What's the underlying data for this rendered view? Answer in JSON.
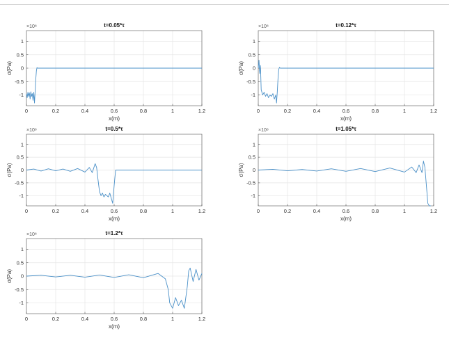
{
  "figure": {
    "window_rule": true
  },
  "colors": {
    "line": "#4a90c8",
    "grid": "#e6e6e6",
    "axis": "#555555"
  },
  "chart_data": [
    {
      "type": "line",
      "title": "t=0.05*τ",
      "xlabel": "x(m)",
      "ylabel": "σ(Pa)",
      "exponent_label": "×10⁸",
      "xlim": [
        0,
        1.2
      ],
      "ylim": [
        -1.4,
        1.4
      ],
      "x_ticks": [
        "0",
        "0.2",
        "0.4",
        "0.6",
        "0.8",
        "1",
        "1.2"
      ],
      "y_ticks": [
        "-1",
        "-0.5",
        "0",
        "0.5",
        "1"
      ],
      "grid": true,
      "series": [
        {
          "x": [
            0,
            0.005,
            0.01,
            0.015,
            0.02,
            0.025,
            0.03,
            0.035,
            0.04,
            0.045,
            0.05,
            0.055,
            0.06,
            0.064,
            0.068,
            0.072,
            0.076,
            0.08,
            0.1,
            0.4,
            0.8,
            1.2
          ],
          "y": [
            -0.95,
            -1.1,
            -0.9,
            -1.05,
            -0.92,
            -1.15,
            -0.88,
            -1.05,
            -0.95,
            -1.2,
            -0.9,
            -1.3,
            -0.8,
            -0.4,
            -0.1,
            0.02,
            0.0,
            0.0,
            0.0,
            0.0,
            0.0,
            0.0
          ]
        }
      ]
    },
    {
      "type": "line",
      "title": "t=0.12*τ",
      "xlabel": "x(m)",
      "ylabel": "σ(Pa)",
      "exponent_label": "×10⁸",
      "xlim": [
        0,
        1.2
      ],
      "ylim": [
        -1.4,
        1.4
      ],
      "x_ticks": [
        "0",
        "0.2",
        "0.4",
        "0.6",
        "0.8",
        "1",
        "1.2"
      ],
      "y_ticks": [
        "-1",
        "-0.5",
        "0",
        "0.5",
        "1"
      ],
      "grid": true,
      "series": [
        {
          "x": [
            0,
            0.005,
            0.01,
            0.015,
            0.02,
            0.03,
            0.04,
            0.05,
            0.06,
            0.07,
            0.08,
            0.09,
            0.1,
            0.11,
            0.12,
            0.125,
            0.13,
            0.135,
            0.14,
            0.145,
            0.15,
            0.16,
            0.2,
            0.6,
            1.0,
            1.2
          ],
          "y": [
            0.0,
            0.3,
            -0.2,
            0.1,
            -0.8,
            -1.0,
            -0.9,
            -1.05,
            -0.95,
            -1.1,
            -1.0,
            -1.05,
            -0.95,
            -1.15,
            -1.0,
            -1.3,
            -0.9,
            -0.4,
            -0.05,
            0.03,
            0.0,
            0.0,
            0.0,
            0.0,
            0.0,
            0.0
          ]
        }
      ]
    },
    {
      "type": "line",
      "title": "t=0.5*τ",
      "xlabel": "x(m)",
      "ylabel": "σ(Pa)",
      "exponent_label": "×10⁸",
      "xlim": [
        0,
        1.2
      ],
      "ylim": [
        -1.4,
        1.4
      ],
      "x_ticks": [
        "0",
        "0.2",
        "0.4",
        "0.6",
        "0.8",
        "1",
        "1.2"
      ],
      "y_ticks": [
        "-1",
        "-0.5",
        "0",
        "0.5",
        "1"
      ],
      "grid": true,
      "series": [
        {
          "x": [
            0,
            0.05,
            0.1,
            0.15,
            0.2,
            0.25,
            0.3,
            0.35,
            0.4,
            0.43,
            0.45,
            0.47,
            0.48,
            0.49,
            0.5,
            0.51,
            0.52,
            0.53,
            0.54,
            0.55,
            0.56,
            0.57,
            0.58,
            0.59,
            0.6,
            0.61,
            0.62,
            0.7,
            0.9,
            1.2
          ],
          "y": [
            0.0,
            0.04,
            -0.04,
            0.05,
            -0.03,
            0.04,
            -0.05,
            0.06,
            -0.08,
            0.1,
            -0.1,
            0.25,
            0.1,
            -0.4,
            -0.85,
            -1.0,
            -0.9,
            -1.05,
            -0.95,
            -1.0,
            -1.05,
            -0.9,
            -1.1,
            -1.3,
            -0.6,
            0.0,
            0.0,
            0.0,
            0.0,
            0.0
          ]
        }
      ]
    },
    {
      "type": "line",
      "title": "t=1.05*τ",
      "xlabel": "x(m)",
      "ylabel": "σ(Pa)",
      "exponent_label": "×10⁸",
      "xlim": [
        0,
        1.2
      ],
      "ylim": [
        -1.4,
        1.4
      ],
      "x_ticks": [
        "0",
        "0.2",
        "0.4",
        "0.6",
        "0.8",
        "1",
        "1.2"
      ],
      "y_ticks": [
        "-1",
        "-0.5",
        "0",
        "0.5",
        "1"
      ],
      "grid": true,
      "series": [
        {
          "x": [
            0,
            0.1,
            0.2,
            0.3,
            0.4,
            0.5,
            0.6,
            0.7,
            0.8,
            0.9,
            1.0,
            1.05,
            1.08,
            1.1,
            1.12,
            1.13,
            1.14,
            1.15,
            1.16,
            1.17,
            1.18
          ],
          "y": [
            0.0,
            0.03,
            -0.03,
            0.02,
            -0.04,
            0.05,
            -0.05,
            0.06,
            -0.06,
            0.08,
            -0.08,
            0.12,
            -0.1,
            0.2,
            -0.1,
            0.35,
            0.1,
            -0.6,
            -1.3,
            -1.4,
            -1.4
          ]
        }
      ]
    },
    {
      "type": "line",
      "title": "t=1.2*τ",
      "xlabel": "x(m)",
      "ylabel": "σ(Pa)",
      "exponent_label": "×10⁸",
      "xlim": [
        0,
        1.2
      ],
      "ylim": [
        -1.4,
        1.4
      ],
      "x_ticks": [
        "0",
        "0.2",
        "0.4",
        "0.6",
        "0.8",
        "1",
        "1.2"
      ],
      "y_ticks": [
        "-1",
        "-0.5",
        "0",
        "0.5",
        "1"
      ],
      "grid": true,
      "series": [
        {
          "x": [
            0,
            0.1,
            0.2,
            0.3,
            0.4,
            0.5,
            0.6,
            0.7,
            0.8,
            0.9,
            0.95,
            0.97,
            0.98,
            1.0,
            1.02,
            1.04,
            1.06,
            1.08,
            1.1,
            1.11,
            1.12,
            1.14,
            1.16,
            1.18,
            1.2
          ],
          "y": [
            0.0,
            0.03,
            -0.03,
            0.03,
            -0.04,
            0.04,
            -0.05,
            0.05,
            -0.06,
            0.1,
            -0.1,
            -0.5,
            -1.0,
            -1.2,
            -0.8,
            -1.1,
            -0.9,
            -1.2,
            -0.4,
            0.2,
            0.3,
            -0.2,
            0.25,
            -0.15,
            0.1
          ]
        }
      ]
    }
  ]
}
